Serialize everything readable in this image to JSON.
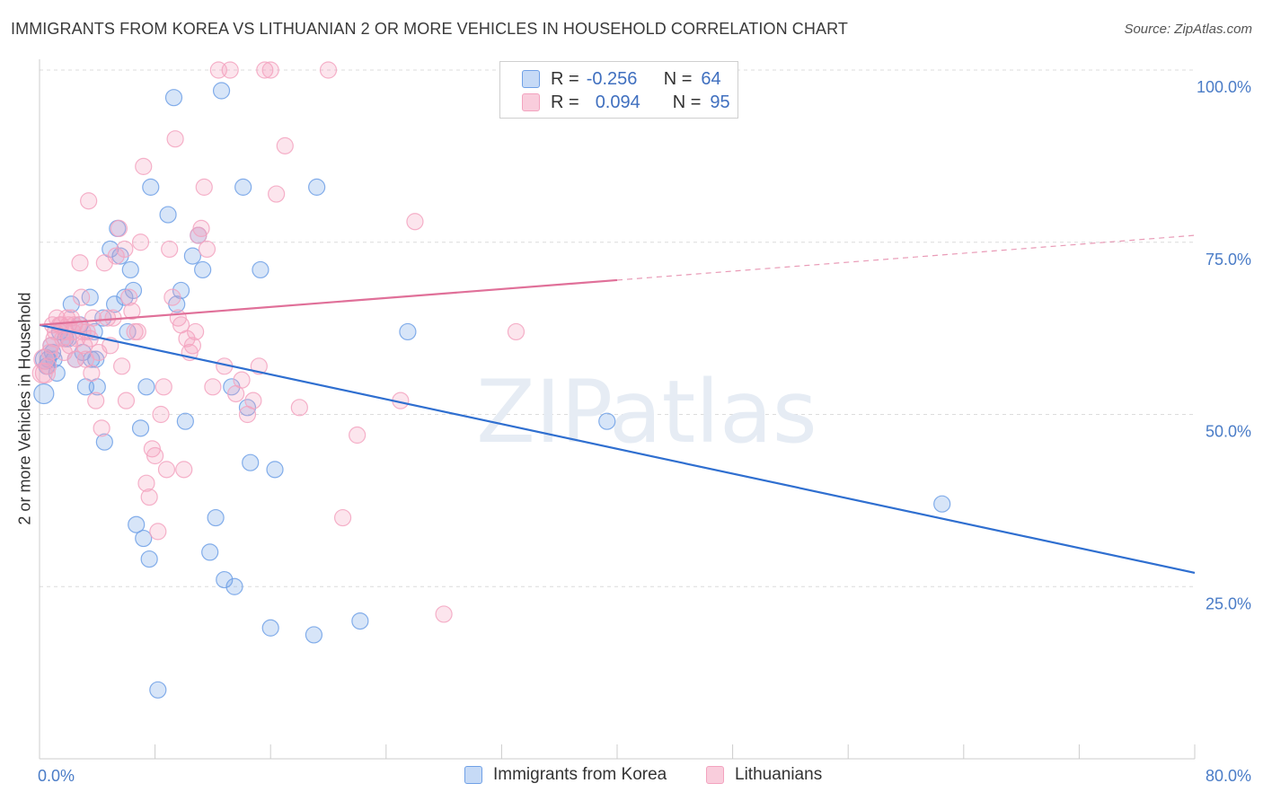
{
  "title": "IMMIGRANTS FROM KOREA VS LITHUANIAN 2 OR MORE VEHICLES IN HOUSEHOLD CORRELATION CHART",
  "source": "Source: ZipAtlas.com",
  "watermark": "ZIPatlas",
  "chart_data": {
    "type": "scatter",
    "ylabel": "2 or more Vehicles in Household",
    "xlim": [
      0,
      80
    ],
    "ylim": [
      0,
      100
    ],
    "y_ticks": [
      {
        "value": 100,
        "label": "100.0%"
      },
      {
        "value": 75,
        "label": "75.0%"
      },
      {
        "value": 50,
        "label": "50.0%"
      },
      {
        "value": 25,
        "label": "25.0%"
      }
    ],
    "x_ticks": [
      {
        "value": 0,
        "label": "0.0%"
      },
      {
        "value": 80,
        "label": "80.0%"
      }
    ],
    "grid": true,
    "legend_placement": "top-center",
    "series": [
      {
        "name": "Immigrants from Korea",
        "color": "#6fa0e6",
        "line_color": "#2f6fd0",
        "r_label": "R =",
        "r_value": "-0.256",
        "n_label": "N =",
        "n_value": "64",
        "trend": {
          "x0": 0,
          "y0": 63,
          "x1": 80,
          "y1": 27,
          "solid_until": 80
        },
        "points": [
          [
            0.3,
            53
          ],
          [
            0.4,
            58
          ],
          [
            0.5,
            57
          ],
          [
            0.6,
            58
          ],
          [
            0.8,
            60
          ],
          [
            1.0,
            58
          ],
          [
            1.2,
            56
          ],
          [
            1.4,
            62
          ],
          [
            1.8,
            61
          ],
          [
            2.2,
            66
          ],
          [
            2.5,
            58
          ],
          [
            2.8,
            63
          ],
          [
            3.0,
            59
          ],
          [
            3.2,
            54
          ],
          [
            3.5,
            67
          ],
          [
            3.8,
            62
          ],
          [
            3.9,
            58
          ],
          [
            4.0,
            54
          ],
          [
            4.4,
            64
          ],
          [
            4.5,
            46
          ],
          [
            4.9,
            74
          ],
          [
            5.2,
            66
          ],
          [
            5.4,
            77
          ],
          [
            5.6,
            73
          ],
          [
            5.9,
            67
          ],
          [
            6.1,
            62
          ],
          [
            6.3,
            71
          ],
          [
            6.5,
            68
          ],
          [
            6.7,
            34
          ],
          [
            7.0,
            48
          ],
          [
            7.2,
            32
          ],
          [
            7.4,
            54
          ],
          [
            7.6,
            29
          ],
          [
            7.7,
            83
          ],
          [
            8.2,
            10
          ],
          [
            8.9,
            79
          ],
          [
            9.3,
            96
          ],
          [
            9.5,
            66
          ],
          [
            9.8,
            68
          ],
          [
            10.1,
            49
          ],
          [
            10.6,
            73
          ],
          [
            11.0,
            76
          ],
          [
            11.3,
            71
          ],
          [
            11.8,
            30
          ],
          [
            12.2,
            35
          ],
          [
            12.6,
            97
          ],
          [
            12.8,
            26
          ],
          [
            13.3,
            54
          ],
          [
            13.5,
            25
          ],
          [
            14.1,
            83
          ],
          [
            14.4,
            51
          ],
          [
            14.6,
            43
          ],
          [
            15.3,
            71
          ],
          [
            16.0,
            19
          ],
          [
            16.3,
            42
          ],
          [
            19.0,
            18
          ],
          [
            19.2,
            83
          ],
          [
            22.2,
            20
          ],
          [
            25.5,
            62
          ],
          [
            39.3,
            49
          ],
          [
            62.5,
            37
          ],
          [
            0.9,
            59
          ],
          [
            2.0,
            61
          ],
          [
            3.6,
            58
          ]
        ]
      },
      {
        "name": "Lithuanians",
        "color": "#f3a3bf",
        "line_color": "#e07099",
        "r_label": "R =",
        "r_value": "0.094",
        "n_label": "N =",
        "n_value": "95",
        "trend": {
          "x0": 0,
          "y0": 63,
          "x1": 80,
          "y1": 76,
          "solid_until": 40
        },
        "points": [
          [
            0.2,
            56
          ],
          [
            0.3,
            58
          ],
          [
            0.4,
            56
          ],
          [
            0.6,
            57
          ],
          [
            0.7,
            59
          ],
          [
            0.8,
            60
          ],
          [
            0.9,
            63
          ],
          [
            1.0,
            61
          ],
          [
            1.1,
            62
          ],
          [
            1.2,
            64
          ],
          [
            1.4,
            63
          ],
          [
            1.5,
            63
          ],
          [
            1.6,
            61
          ],
          [
            1.7,
            59
          ],
          [
            1.8,
            62
          ],
          [
            1.9,
            64
          ],
          [
            2.0,
            63
          ],
          [
            2.1,
            60
          ],
          [
            2.2,
            64
          ],
          [
            2.3,
            62
          ],
          [
            2.4,
            63
          ],
          [
            2.5,
            58
          ],
          [
            2.6,
            61
          ],
          [
            2.7,
            63
          ],
          [
            2.8,
            72
          ],
          [
            2.9,
            67
          ],
          [
            3.0,
            62
          ],
          [
            3.1,
            60
          ],
          [
            3.2,
            58
          ],
          [
            3.3,
            62
          ],
          [
            3.4,
            81
          ],
          [
            3.5,
            61
          ],
          [
            3.6,
            56
          ],
          [
            3.7,
            64
          ],
          [
            3.9,
            52
          ],
          [
            4.1,
            59
          ],
          [
            4.3,
            48
          ],
          [
            4.5,
            72
          ],
          [
            4.7,
            64
          ],
          [
            4.9,
            60
          ],
          [
            5.1,
            64
          ],
          [
            5.3,
            73
          ],
          [
            5.5,
            77
          ],
          [
            5.7,
            57
          ],
          [
            5.9,
            74
          ],
          [
            6.0,
            52
          ],
          [
            6.2,
            67
          ],
          [
            6.4,
            65
          ],
          [
            6.6,
            62
          ],
          [
            6.8,
            62
          ],
          [
            7.0,
            75
          ],
          [
            7.2,
            86
          ],
          [
            7.4,
            40
          ],
          [
            7.6,
            38
          ],
          [
            7.8,
            45
          ],
          [
            8.0,
            44
          ],
          [
            8.2,
            33
          ],
          [
            8.4,
            50
          ],
          [
            8.6,
            54
          ],
          [
            8.8,
            42
          ],
          [
            9.0,
            74
          ],
          [
            9.2,
            67
          ],
          [
            9.4,
            90
          ],
          [
            9.6,
            64
          ],
          [
            9.8,
            63
          ],
          [
            10.0,
            42
          ],
          [
            10.2,
            61
          ],
          [
            10.4,
            59
          ],
          [
            10.6,
            60
          ],
          [
            10.8,
            62
          ],
          [
            11.0,
            76
          ],
          [
            11.2,
            77
          ],
          [
            11.4,
            83
          ],
          [
            11.6,
            74
          ],
          [
            12.0,
            54
          ],
          [
            12.4,
            100
          ],
          [
            12.8,
            57
          ],
          [
            13.2,
            100
          ],
          [
            13.6,
            53
          ],
          [
            14.0,
            55
          ],
          [
            14.4,
            50
          ],
          [
            14.8,
            52
          ],
          [
            15.2,
            57
          ],
          [
            15.6,
            100
          ],
          [
            16.0,
            100
          ],
          [
            16.4,
            82
          ],
          [
            17.0,
            89
          ],
          [
            18.0,
            51
          ],
          [
            20.0,
            100
          ],
          [
            21.0,
            35
          ],
          [
            22.0,
            47
          ],
          [
            25.0,
            52
          ],
          [
            26.0,
            78
          ],
          [
            28.0,
            21
          ],
          [
            33.0,
            62
          ]
        ]
      }
    ]
  }
}
